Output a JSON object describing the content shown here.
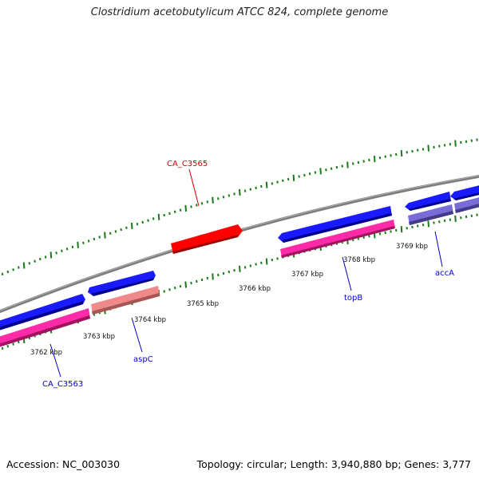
{
  "title": "Clostridium acetobutylicum ATCC 824, complete genome",
  "footer": {
    "accession": "Accession: NC_003030",
    "summary": "Topology: circular; Length: 3,940,880 bp; Genes: 3,777"
  },
  "colors": {
    "backbone": "#808080",
    "tick": "#1a7a1a",
    "gene_label": "#0000cc",
    "highlight_label": "#cc0000"
  },
  "scale_labels": [
    "3762 kbp",
    "3763 kbp",
    "3764 kbp",
    "3765 kbp",
    "3766 kbp",
    "3767 kbp",
    "3768 kbp",
    "3769 kbp"
  ],
  "gene_labels": [
    {
      "text": "CA_C3563",
      "highlight": false
    },
    {
      "text": "aspC",
      "highlight": false
    },
    {
      "text": "topB",
      "highlight": false
    },
    {
      "text": "accA",
      "highlight": false
    },
    {
      "text": "CA_C3565",
      "highlight": true
    }
  ]
}
